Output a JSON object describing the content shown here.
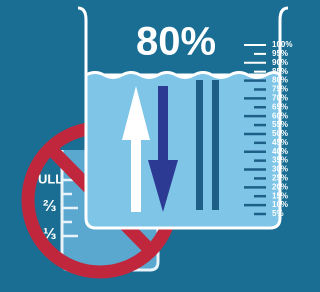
{
  "big_label": "80%",
  "scale_labels": [
    "100%",
    "95%",
    "90%",
    "85%",
    "80%",
    "75%",
    "70%",
    "65%",
    "60%",
    "55%",
    "50%",
    "45%",
    "40%",
    "35%",
    "30%",
    "25%",
    "20%",
    "15%",
    "10%",
    "5%"
  ],
  "small_beaker_labels": [
    "FULL",
    "⅔",
    "⅓"
  ]
}
